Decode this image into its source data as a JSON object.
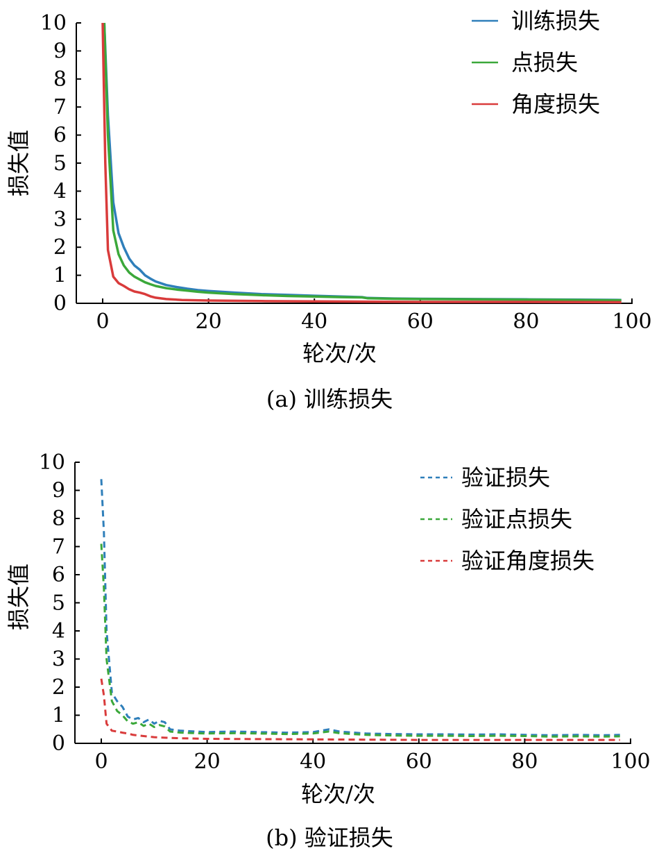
{
  "chart_data": [
    {
      "type": "line",
      "caption": "(a) 训练损失",
      "xlabel": "轮次/次",
      "ylabel": "损失值",
      "xlim": [
        0,
        100
      ],
      "ylim": [
        0,
        10
      ],
      "xticks": [
        0,
        20,
        40,
        60,
        80,
        100
      ],
      "yticks": [
        0,
        1,
        2,
        3,
        4,
        5,
        6,
        7,
        8,
        9,
        10
      ],
      "legend_position": "top-right",
      "series": [
        {
          "name": "训练损失",
          "color": "#2f7fba",
          "style": "solid",
          "points": [
            [
              0.3,
              10
            ],
            [
              1,
              6.7
            ],
            [
              2,
              3.6
            ],
            [
              3,
              2.5
            ],
            [
              4,
              2.0
            ],
            [
              5,
              1.6
            ],
            [
              6,
              1.35
            ],
            [
              7,
              1.2
            ],
            [
              8,
              1.0
            ],
            [
              9,
              0.88
            ],
            [
              10,
              0.78
            ],
            [
              12,
              0.65
            ],
            [
              14,
              0.58
            ],
            [
              16,
              0.52
            ],
            [
              18,
              0.47
            ],
            [
              20,
              0.44
            ],
            [
              25,
              0.38
            ],
            [
              30,
              0.33
            ],
            [
              35,
              0.3
            ],
            [
              40,
              0.27
            ],
            [
              45,
              0.24
            ],
            [
              49,
              0.22
            ],
            [
              50,
              0.19
            ],
            [
              55,
              0.17
            ],
            [
              60,
              0.16
            ],
            [
              70,
              0.15
            ],
            [
              80,
              0.14
            ],
            [
              90,
              0.13
            ],
            [
              98,
              0.12
            ]
          ]
        },
        {
          "name": "点损失",
          "color": "#3ba83a",
          "style": "solid",
          "points": [
            [
              0.3,
              10
            ],
            [
              1,
              6.0
            ],
            [
              2,
              2.6
            ],
            [
              3,
              1.75
            ],
            [
              4,
              1.35
            ],
            [
              5,
              1.1
            ],
            [
              6,
              0.95
            ],
            [
              7,
              0.85
            ],
            [
              8,
              0.75
            ],
            [
              9,
              0.68
            ],
            [
              10,
              0.62
            ],
            [
              12,
              0.54
            ],
            [
              14,
              0.49
            ],
            [
              16,
              0.45
            ],
            [
              18,
              0.41
            ],
            [
              20,
              0.38
            ],
            [
              25,
              0.33
            ],
            [
              30,
              0.29
            ],
            [
              35,
              0.26
            ],
            [
              40,
              0.24
            ],
            [
              45,
              0.22
            ],
            [
              49,
              0.21
            ],
            [
              50,
              0.18
            ],
            [
              55,
              0.16
            ],
            [
              60,
              0.15
            ],
            [
              70,
              0.14
            ],
            [
              80,
              0.13
            ],
            [
              90,
              0.12
            ],
            [
              98,
              0.11
            ]
          ]
        },
        {
          "name": "角度损失",
          "color": "#d93b3b",
          "style": "solid",
          "points": [
            [
              0,
              10
            ],
            [
              0.5,
              5.0
            ],
            [
              1,
              1.9
            ],
            [
              2,
              0.95
            ],
            [
              3,
              0.72
            ],
            [
              4,
              0.62
            ],
            [
              5,
              0.5
            ],
            [
              6,
              0.42
            ],
            [
              7,
              0.38
            ],
            [
              8,
              0.33
            ],
            [
              9,
              0.25
            ],
            [
              10,
              0.2
            ],
            [
              12,
              0.15
            ],
            [
              15,
              0.12
            ],
            [
              20,
              0.1
            ],
            [
              30,
              0.08
            ],
            [
              40,
              0.07
            ],
            [
              50,
              0.06
            ],
            [
              60,
              0.05
            ],
            [
              80,
              0.05
            ],
            [
              98,
              0.04
            ]
          ]
        }
      ]
    },
    {
      "type": "line",
      "caption": "(b) 验证损失",
      "xlabel": "轮次/次",
      "ylabel": "损失值",
      "xlim": [
        0,
        100
      ],
      "ylim": [
        0,
        10
      ],
      "xticks": [
        0,
        20,
        40,
        60,
        80,
        100
      ],
      "yticks": [
        0,
        1,
        2,
        3,
        4,
        5,
        6,
        7,
        8,
        9,
        10
      ],
      "legend_position": "top-right",
      "series": [
        {
          "name": "验证损失",
          "color": "#2f7fba",
          "style": "dashed",
          "points": [
            [
              0,
              9.4
            ],
            [
              0.5,
              7.5
            ],
            [
              1,
              4.0
            ],
            [
              2,
              1.8
            ],
            [
              3,
              1.5
            ],
            [
              4,
              1.3
            ],
            [
              5,
              0.95
            ],
            [
              6,
              0.85
            ],
            [
              7,
              0.9
            ],
            [
              8,
              0.75
            ],
            [
              9,
              0.85
            ],
            [
              10,
              0.7
            ],
            [
              11,
              0.8
            ],
            [
              12,
              0.75
            ],
            [
              13,
              0.5
            ],
            [
              15,
              0.45
            ],
            [
              18,
              0.42
            ],
            [
              20,
              0.4
            ],
            [
              25,
              0.42
            ],
            [
              30,
              0.4
            ],
            [
              35,
              0.38
            ],
            [
              40,
              0.4
            ],
            [
              43,
              0.5
            ],
            [
              45,
              0.42
            ],
            [
              50,
              0.35
            ],
            [
              55,
              0.33
            ],
            [
              60,
              0.32
            ],
            [
              65,
              0.32
            ],
            [
              70,
              0.31
            ],
            [
              75,
              0.32
            ],
            [
              80,
              0.3
            ],
            [
              85,
              0.29
            ],
            [
              90,
              0.3
            ],
            [
              95,
              0.29
            ],
            [
              98,
              0.3
            ]
          ]
        },
        {
          "name": "验证点损失",
          "color": "#3ba83a",
          "style": "dashed",
          "points": [
            [
              0,
              7.1
            ],
            [
              0.5,
              5.5
            ],
            [
              1,
              3.0
            ],
            [
              2,
              1.5
            ],
            [
              3,
              1.15
            ],
            [
              4,
              1.0
            ],
            [
              5,
              0.78
            ],
            [
              6,
              0.7
            ],
            [
              7,
              0.75
            ],
            [
              8,
              0.62
            ],
            [
              9,
              0.7
            ],
            [
              10,
              0.58
            ],
            [
              11,
              0.65
            ],
            [
              12,
              0.6
            ],
            [
              13,
              0.42
            ],
            [
              15,
              0.38
            ],
            [
              18,
              0.36
            ],
            [
              20,
              0.35
            ],
            [
              25,
              0.36
            ],
            [
              30,
              0.35
            ],
            [
              35,
              0.33
            ],
            [
              40,
              0.35
            ],
            [
              43,
              0.42
            ],
            [
              45,
              0.36
            ],
            [
              50,
              0.3
            ],
            [
              55,
              0.28
            ],
            [
              60,
              0.27
            ],
            [
              65,
              0.27
            ],
            [
              70,
              0.26
            ],
            [
              75,
              0.27
            ],
            [
              80,
              0.26
            ],
            [
              85,
              0.24
            ],
            [
              90,
              0.25
            ],
            [
              95,
              0.24
            ],
            [
              98,
              0.25
            ]
          ]
        },
        {
          "name": "验证角度损失",
          "color": "#d93b3b",
          "style": "dashed",
          "points": [
            [
              0,
              2.3
            ],
            [
              0.5,
              1.7
            ],
            [
              1,
              0.7
            ],
            [
              2,
              0.45
            ],
            [
              3,
              0.42
            ],
            [
              4,
              0.38
            ],
            [
              5,
              0.35
            ],
            [
              6,
              0.3
            ],
            [
              7,
              0.28
            ],
            [
              8,
              0.26
            ],
            [
              10,
              0.22
            ],
            [
              12,
              0.2
            ],
            [
              15,
              0.18
            ],
            [
              20,
              0.16
            ],
            [
              30,
              0.15
            ],
            [
              40,
              0.14
            ],
            [
              50,
              0.13
            ],
            [
              60,
              0.12
            ],
            [
              80,
              0.12
            ],
            [
              98,
              0.12
            ]
          ]
        }
      ]
    }
  ]
}
